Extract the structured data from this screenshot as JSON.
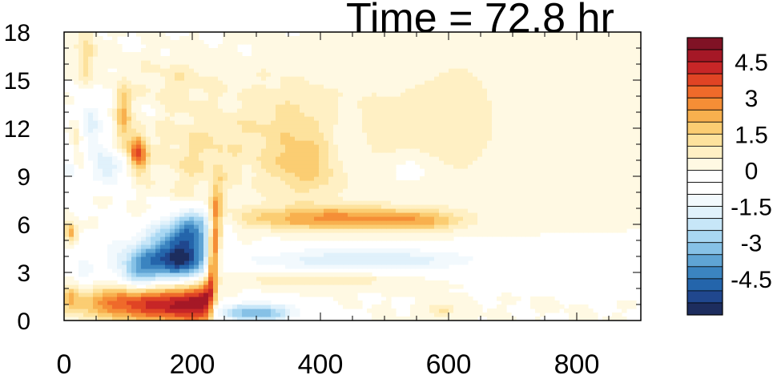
{
  "chart_data": {
    "type": "heatmap",
    "title": "Time = 72.8 hr",
    "xlabel": "",
    "ylabel": "",
    "xlim": [
      0,
      900
    ],
    "ylim": [
      0,
      18
    ],
    "x_ticks": [
      "0",
      "200",
      "400",
      "600",
      "800"
    ],
    "y_ticks": [
      "0",
      "3",
      "6",
      "9",
      "12",
      "15",
      "18"
    ],
    "colorbar": {
      "tick_labels": [
        "4.5",
        "3",
        "1.5",
        "0",
        "-1.5",
        "-3",
        "-4.5"
      ],
      "levels": [
        -5.5,
        -5,
        -4.5,
        -4,
        -3.5,
        -3,
        -2.5,
        -2,
        -1.5,
        -1,
        -0.5,
        0,
        0.5,
        1,
        1.5,
        2,
        2.5,
        3,
        3.5,
        4,
        4.5,
        5,
        5.5
      ],
      "colors": [
        "#1d2d5e",
        "#20478e",
        "#2465ab",
        "#3b84c0",
        "#5fa4d4",
        "#86c1e6",
        "#a8d7f2",
        "#c7e6f8",
        "#e0f1fb",
        "#f2f9fd",
        "#ffffff",
        "#ffffff",
        "#fff9e3",
        "#fff0c4",
        "#fde29d",
        "#fbcd72",
        "#f8b04e",
        "#f58e36",
        "#ef6a2a",
        "#e04424",
        "#c72627",
        "#a51826",
        "#801225"
      ]
    },
    "features": [
      {
        "kind": "front_positive",
        "x_range": [
          15,
          235
        ],
        "y_range": [
          0,
          2.5
        ],
        "peak": 5.6
      },
      {
        "kind": "front_negative",
        "x_range": [
          90,
          235
        ],
        "y_range": [
          2,
          6.5
        ],
        "peak": -5.6
      },
      {
        "kind": "band_positive",
        "x_range": [
          235,
          620
        ],
        "y_center": 6.4,
        "peak": 2.6
      },
      {
        "kind": "band_negative",
        "x_range": [
          270,
          680
        ],
        "y_center": 3.8,
        "peak": -2.0
      },
      {
        "kind": "cell_positive",
        "x": 115,
        "y": 10.5,
        "peak": 3.8
      },
      {
        "kind": "cell_negative",
        "x": 310,
        "y": 0.5,
        "peak": -3.5
      }
    ]
  }
}
